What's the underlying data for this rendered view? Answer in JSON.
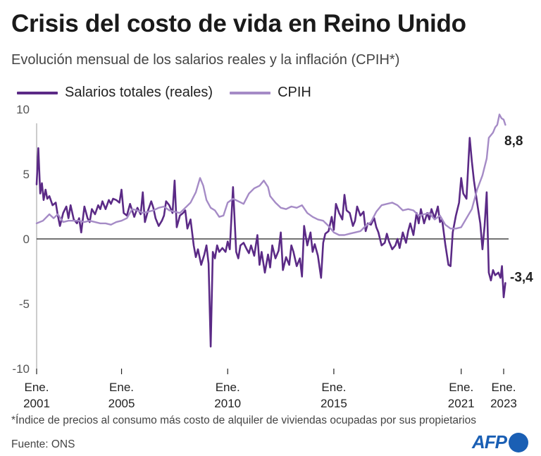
{
  "colors": {
    "salarios": "#5b2a86",
    "cpih": "#a58bc6",
    "axis": "#222222",
    "grid": "#cccccc"
  },
  "title": "Crisis del costo de vida en Reino Unido",
  "subtitle": "Evolución mensual de los salarios reales y la inflación (CPIH*)",
  "legend": {
    "salarios": "Salarios totales (reales)",
    "cpih": "CPIH"
  },
  "footnote": "*Índice de precios al consumo más costo de alquiler de viviendas ocupadas por sus propietarios",
  "source": "Fuente: ONS",
  "logo": "AFP",
  "chart_data": {
    "type": "line",
    "xlim": [
      2001.0,
      2023.1
    ],
    "ylim": [
      -10,
      10
    ],
    "yticks": [
      10,
      5,
      0,
      -5,
      -10
    ],
    "ytick_labels": [
      "10",
      "5",
      "0",
      "-5",
      "-10"
    ],
    "xticks": [
      {
        "x": 2001.0,
        "line1": "Ene.",
        "line2": "2001"
      },
      {
        "x": 2005.0,
        "line1": "Ene.",
        "line2": "2005"
      },
      {
        "x": 2010.0,
        "line1": "Ene.",
        "line2": "2010"
      },
      {
        "x": 2015.0,
        "line1": "Ene.",
        "line2": "2015"
      },
      {
        "x": 2021.0,
        "line1": "Ene.",
        "line2": "2021"
      },
      {
        "x": 2023.0,
        "line1": "Ene.",
        "line2": "2023"
      }
    ],
    "end_labels": {
      "cpih": "8,8",
      "salarios": "-3,4"
    },
    "series": [
      {
        "name": "Salarios totales (reales)",
        "key": "salarios",
        "points": [
          [
            2001.0,
            4.2
          ],
          [
            2001.08,
            7.0
          ],
          [
            2001.17,
            3.5
          ],
          [
            2001.25,
            4.3
          ],
          [
            2001.33,
            3.0
          ],
          [
            2001.42,
            3.8
          ],
          [
            2001.5,
            3.1
          ],
          [
            2001.6,
            3.3
          ],
          [
            2001.75,
            2.6
          ],
          [
            2001.9,
            2.8
          ],
          [
            2002.0,
            1.8
          ],
          [
            2002.1,
            1.0
          ],
          [
            2002.25,
            2.0
          ],
          [
            2002.4,
            2.5
          ],
          [
            2002.5,
            1.6
          ],
          [
            2002.6,
            2.6
          ],
          [
            2002.75,
            1.5
          ],
          [
            2002.9,
            1.2
          ],
          [
            2003.0,
            1.6
          ],
          [
            2003.1,
            0.5
          ],
          [
            2003.25,
            2.5
          ],
          [
            2003.4,
            1.6
          ],
          [
            2003.5,
            1.3
          ],
          [
            2003.6,
            2.3
          ],
          [
            2003.75,
            1.9
          ],
          [
            2003.9,
            2.6
          ],
          [
            2004.0,
            2.3
          ],
          [
            2004.1,
            2.9
          ],
          [
            2004.25,
            2.3
          ],
          [
            2004.4,
            3.0
          ],
          [
            2004.5,
            2.7
          ],
          [
            2004.6,
            3.1
          ],
          [
            2004.75,
            3.0
          ],
          [
            2004.9,
            2.8
          ],
          [
            2005.0,
            3.8
          ],
          [
            2005.1,
            2.0
          ],
          [
            2005.25,
            1.8
          ],
          [
            2005.4,
            2.7
          ],
          [
            2005.5,
            2.2
          ],
          [
            2005.6,
            1.7
          ],
          [
            2005.75,
            2.4
          ],
          [
            2005.9,
            1.9
          ],
          [
            2006.0,
            3.6
          ],
          [
            2006.1,
            1.3
          ],
          [
            2006.25,
            2.2
          ],
          [
            2006.4,
            2.9
          ],
          [
            2006.5,
            2.4
          ],
          [
            2006.6,
            1.6
          ],
          [
            2006.75,
            1.0
          ],
          [
            2006.9,
            1.4
          ],
          [
            2007.0,
            1.8
          ],
          [
            2007.1,
            2.9
          ],
          [
            2007.25,
            2.6
          ],
          [
            2007.4,
            2.0
          ],
          [
            2007.5,
            4.5
          ],
          [
            2007.6,
            0.9
          ],
          [
            2007.75,
            1.8
          ],
          [
            2007.9,
            2.0
          ],
          [
            2008.0,
            2.2
          ],
          [
            2008.1,
            0.8
          ],
          [
            2008.25,
            1.5
          ],
          [
            2008.4,
            -0.5
          ],
          [
            2008.5,
            -1.4
          ],
          [
            2008.6,
            -0.8
          ],
          [
            2008.75,
            -2.0
          ],
          [
            2008.9,
            -1.2
          ],
          [
            2009.0,
            -0.5
          ],
          [
            2009.1,
            -1.9
          ],
          [
            2009.2,
            -8.3
          ],
          [
            2009.3,
            -1.0
          ],
          [
            2009.4,
            -1.5
          ],
          [
            2009.5,
            -0.5
          ],
          [
            2009.6,
            -1.0
          ],
          [
            2009.75,
            -0.7
          ],
          [
            2009.9,
            -1.0
          ],
          [
            2010.0,
            -0.2
          ],
          [
            2010.1,
            -0.8
          ],
          [
            2010.25,
            4.0
          ],
          [
            2010.4,
            -1.0
          ],
          [
            2010.5,
            -1.5
          ],
          [
            2010.6,
            -0.5
          ],
          [
            2010.75,
            -0.3
          ],
          [
            2010.9,
            -0.8
          ],
          [
            2011.0,
            -1.1
          ],
          [
            2011.1,
            -0.5
          ],
          [
            2011.25,
            -1.3
          ],
          [
            2011.4,
            0.3
          ],
          [
            2011.5,
            -2.0
          ],
          [
            2011.6,
            -1.0
          ],
          [
            2011.75,
            -2.6
          ],
          [
            2011.9,
            -1.2
          ],
          [
            2012.0,
            -2.2
          ],
          [
            2012.1,
            -0.5
          ],
          [
            2012.25,
            -1.5
          ],
          [
            2012.4,
            -0.9
          ],
          [
            2012.5,
            0.5
          ],
          [
            2012.6,
            -2.4
          ],
          [
            2012.75,
            -1.4
          ],
          [
            2012.9,
            -2.0
          ],
          [
            2013.0,
            -0.5
          ],
          [
            2013.1,
            -1.0
          ],
          [
            2013.25,
            -2.1
          ],
          [
            2013.4,
            -1.5
          ],
          [
            2013.5,
            -2.9
          ],
          [
            2013.6,
            1.0
          ],
          [
            2013.75,
            -0.5
          ],
          [
            2013.9,
            0.5
          ],
          [
            2014.0,
            -1.0
          ],
          [
            2014.1,
            -0.4
          ],
          [
            2014.25,
            -1.3
          ],
          [
            2014.4,
            -3.0
          ],
          [
            2014.5,
            -0.3
          ],
          [
            2014.6,
            0.4
          ],
          [
            2014.75,
            0.6
          ],
          [
            2014.9,
            1.7
          ],
          [
            2015.0,
            0.7
          ],
          [
            2015.1,
            2.7
          ],
          [
            2015.25,
            2.0
          ],
          [
            2015.4,
            1.5
          ],
          [
            2015.5,
            3.4
          ],
          [
            2015.6,
            2.2
          ],
          [
            2015.75,
            2.0
          ],
          [
            2015.9,
            1.0
          ],
          [
            2016.0,
            1.4
          ],
          [
            2016.1,
            2.5
          ],
          [
            2016.25,
            1.8
          ],
          [
            2016.4,
            2.1
          ],
          [
            2016.5,
            0.6
          ],
          [
            2016.6,
            1.2
          ],
          [
            2016.75,
            1.1
          ],
          [
            2016.9,
            1.6
          ],
          [
            2017.0,
            0.9
          ],
          [
            2017.1,
            0.5
          ],
          [
            2017.25,
            -0.5
          ],
          [
            2017.4,
            -0.3
          ],
          [
            2017.5,
            0.4
          ],
          [
            2017.6,
            -0.2
          ],
          [
            2017.75,
            -0.8
          ],
          [
            2017.9,
            -0.5
          ],
          [
            2018.0,
            0.0
          ],
          [
            2018.1,
            -0.7
          ],
          [
            2018.25,
            0.5
          ],
          [
            2018.4,
            -0.3
          ],
          [
            2018.5,
            0.6
          ],
          [
            2018.6,
            1.2
          ],
          [
            2018.75,
            0.3
          ],
          [
            2018.9,
            2.0
          ],
          [
            2019.0,
            1.2
          ],
          [
            2019.1,
            2.3
          ],
          [
            2019.25,
            1.2
          ],
          [
            2019.4,
            2.0
          ],
          [
            2019.5,
            1.5
          ],
          [
            2019.6,
            2.3
          ],
          [
            2019.75,
            1.6
          ],
          [
            2019.9,
            2.5
          ],
          [
            2020.0,
            1.3
          ],
          [
            2020.1,
            1.5
          ],
          [
            2020.25,
            -0.4
          ],
          [
            2020.4,
            -2.0
          ],
          [
            2020.5,
            -2.1
          ],
          [
            2020.6,
            0.5
          ],
          [
            2020.75,
            1.8
          ],
          [
            2020.9,
            2.8
          ],
          [
            2021.0,
            4.7
          ],
          [
            2021.1,
            3.5
          ],
          [
            2021.25,
            3.1
          ],
          [
            2021.4,
            7.8
          ],
          [
            2021.5,
            6.0
          ],
          [
            2021.6,
            4.5
          ],
          [
            2021.75,
            2.8
          ],
          [
            2021.9,
            1.2
          ],
          [
            2022.0,
            -0.8
          ],
          [
            2022.1,
            1.0
          ],
          [
            2022.2,
            3.6
          ],
          [
            2022.3,
            -2.6
          ],
          [
            2022.4,
            -3.2
          ],
          [
            2022.5,
            -2.4
          ],
          [
            2022.6,
            -2.8
          ],
          [
            2022.75,
            -2.6
          ],
          [
            2022.85,
            -3.0
          ],
          [
            2022.92,
            -2.1
          ],
          [
            2023.0,
            -4.5
          ],
          [
            2023.08,
            -3.4
          ]
        ]
      },
      {
        "name": "CPIH",
        "key": "cpih",
        "points": [
          [
            2001.0,
            1.2
          ],
          [
            2001.3,
            1.4
          ],
          [
            2001.6,
            1.9
          ],
          [
            2001.8,
            1.6
          ],
          [
            2002.0,
            1.9
          ],
          [
            2002.25,
            1.3
          ],
          [
            2002.5,
            1.4
          ],
          [
            2002.75,
            1.4
          ],
          [
            2003.0,
            1.4
          ],
          [
            2003.25,
            1.3
          ],
          [
            2003.5,
            1.4
          ],
          [
            2003.75,
            1.3
          ],
          [
            2004.0,
            1.2
          ],
          [
            2004.25,
            1.2
          ],
          [
            2004.5,
            1.1
          ],
          [
            2004.75,
            1.3
          ],
          [
            2005.0,
            1.4
          ],
          [
            2005.25,
            1.6
          ],
          [
            2005.5,
            2.3
          ],
          [
            2005.75,
            2.2
          ],
          [
            2006.0,
            2.0
          ],
          [
            2006.25,
            2.1
          ],
          [
            2006.5,
            2.2
          ],
          [
            2006.75,
            2.4
          ],
          [
            2007.0,
            2.5
          ],
          [
            2007.25,
            2.2
          ],
          [
            2007.5,
            2.1
          ],
          [
            2007.75,
            2.0
          ],
          [
            2008.0,
            2.4
          ],
          [
            2008.25,
            2.8
          ],
          [
            2008.5,
            3.6
          ],
          [
            2008.7,
            4.7
          ],
          [
            2008.85,
            4.1
          ],
          [
            2009.0,
            3.0
          ],
          [
            2009.2,
            2.4
          ],
          [
            2009.4,
            2.2
          ],
          [
            2009.6,
            1.7
          ],
          [
            2009.8,
            1.8
          ],
          [
            2010.0,
            2.8
          ],
          [
            2010.25,
            3.1
          ],
          [
            2010.5,
            2.9
          ],
          [
            2010.75,
            2.7
          ],
          [
            2011.0,
            3.5
          ],
          [
            2011.25,
            3.9
          ],
          [
            2011.5,
            4.1
          ],
          [
            2011.7,
            4.5
          ],
          [
            2011.9,
            4.0
          ],
          [
            2012.0,
            3.3
          ],
          [
            2012.25,
            2.8
          ],
          [
            2012.5,
            2.4
          ],
          [
            2012.75,
            2.3
          ],
          [
            2013.0,
            2.5
          ],
          [
            2013.25,
            2.4
          ],
          [
            2013.5,
            2.6
          ],
          [
            2013.75,
            2.0
          ],
          [
            2014.0,
            1.7
          ],
          [
            2014.25,
            1.5
          ],
          [
            2014.5,
            1.4
          ],
          [
            2014.75,
            1.0
          ],
          [
            2015.0,
            0.5
          ],
          [
            2015.25,
            0.3
          ],
          [
            2015.5,
            0.3
          ],
          [
            2015.75,
            0.4
          ],
          [
            2016.0,
            0.5
          ],
          [
            2016.25,
            0.6
          ],
          [
            2016.5,
            1.0
          ],
          [
            2016.75,
            1.3
          ],
          [
            2017.0,
            2.1
          ],
          [
            2017.25,
            2.6
          ],
          [
            2017.5,
            2.7
          ],
          [
            2017.75,
            2.8
          ],
          [
            2018.0,
            2.6
          ],
          [
            2018.25,
            2.2
          ],
          [
            2018.5,
            2.3
          ],
          [
            2018.75,
            2.2
          ],
          [
            2019.0,
            1.8
          ],
          [
            2019.25,
            1.9
          ],
          [
            2019.5,
            2.0
          ],
          [
            2019.75,
            1.5
          ],
          [
            2020.0,
            1.8
          ],
          [
            2020.25,
            1.1
          ],
          [
            2020.5,
            0.8
          ],
          [
            2020.75,
            0.8
          ],
          [
            2021.0,
            0.9
          ],
          [
            2021.25,
            1.6
          ],
          [
            2021.5,
            2.3
          ],
          [
            2021.75,
            3.8
          ],
          [
            2022.0,
            4.9
          ],
          [
            2022.2,
            6.2
          ],
          [
            2022.3,
            7.8
          ],
          [
            2022.5,
            8.2
          ],
          [
            2022.6,
            8.6
          ],
          [
            2022.7,
            8.8
          ],
          [
            2022.8,
            9.6
          ],
          [
            2022.9,
            9.3
          ],
          [
            2023.0,
            9.2
          ],
          [
            2023.08,
            8.8
          ]
        ]
      }
    ]
  }
}
